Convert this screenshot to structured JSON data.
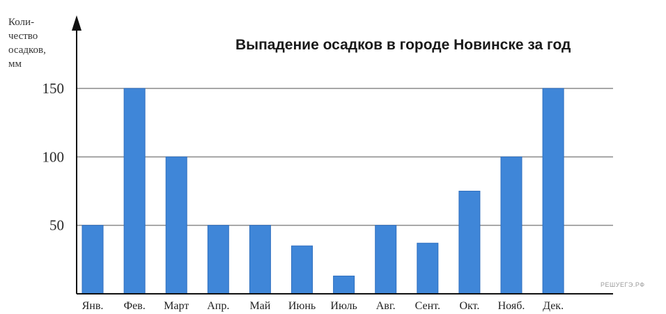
{
  "chart_data": {
    "type": "bar",
    "title": "Выпадение осадков в городе Новинске за год",
    "ylabel_lines": [
      "Коли-",
      "чество",
      "осадков,",
      "мм"
    ],
    "xlabel": "",
    "categories": [
      "Янв.",
      "Фев.",
      "Март",
      "Апр.",
      "Май",
      "Июнь",
      "Июль",
      "Авг.",
      "Сент.",
      "Окт.",
      "Нояб.",
      "Дек."
    ],
    "values": [
      50,
      150,
      100,
      50,
      50,
      35,
      13,
      50,
      37,
      75,
      100,
      150
    ],
    "yticks": [
      50,
      100,
      150
    ],
    "ylim": [
      0,
      150
    ],
    "grid": true,
    "bar_color": "#3f86d8",
    "bar_edge_color": "#2f6fbf"
  },
  "watermark": "РЕШУЕГЭ.РФ"
}
